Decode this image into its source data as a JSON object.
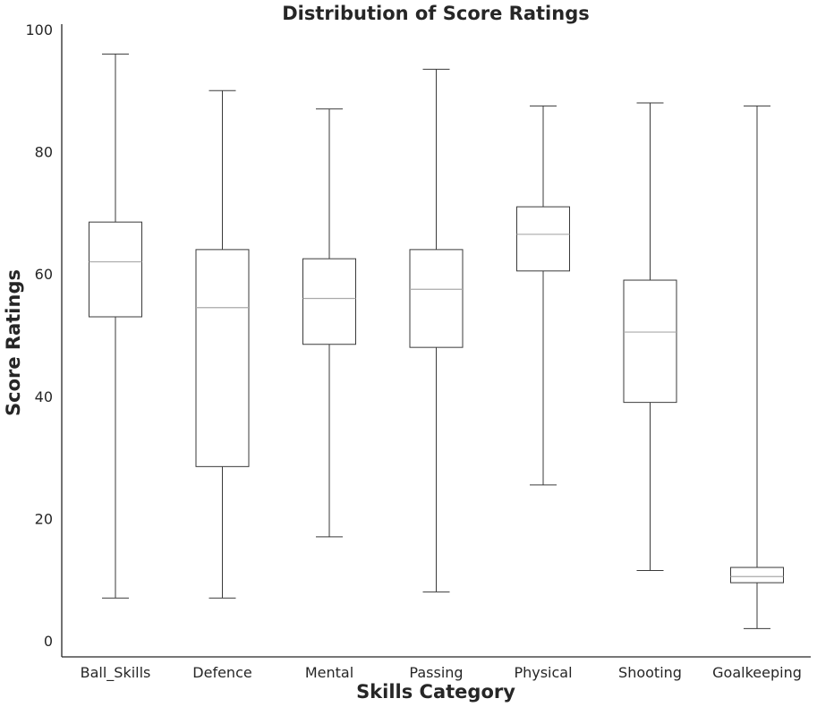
{
  "chart_data": {
    "type": "box",
    "title": "Distribution of Score Ratings",
    "xlabel": "Skills Category",
    "ylabel": "Score Ratings",
    "ylim": [
      -2.5,
      100.8
    ],
    "yticks": [
      0,
      20,
      40,
      60,
      80,
      100
    ],
    "grid": false,
    "categories": [
      "Ball_Skills",
      "Defence",
      "Mental",
      "Passing",
      "Physical",
      "Shooting",
      "Goalkeeping"
    ],
    "boxes": [
      {
        "category": "Ball_Skills",
        "min": 7,
        "q1": 53,
        "median": 62,
        "q3": 68.5,
        "max": 96
      },
      {
        "category": "Defence",
        "min": 7,
        "q1": 28.5,
        "median": 54.5,
        "q3": 64,
        "max": 90
      },
      {
        "category": "Mental",
        "min": 17,
        "q1": 48.5,
        "median": 56,
        "q3": 62.5,
        "max": 87
      },
      {
        "category": "Passing",
        "min": 8,
        "q1": 48,
        "median": 57.5,
        "q3": 64,
        "max": 93.5
      },
      {
        "category": "Physical",
        "min": 25.5,
        "q1": 60.5,
        "median": 66.5,
        "q3": 71,
        "max": 87.5
      },
      {
        "category": "Shooting",
        "min": 11.5,
        "q1": 39,
        "median": 50.5,
        "q3": 59,
        "max": 88
      },
      {
        "category": "Goalkeeping",
        "min": 2,
        "q1": 9.5,
        "median": 10.5,
        "q3": 12,
        "max": 87.5
      }
    ],
    "colors": {
      "box_edge": "#3a3a3a",
      "median": "#aaaaaa",
      "text": "#262626",
      "background": "#ffffff"
    }
  }
}
